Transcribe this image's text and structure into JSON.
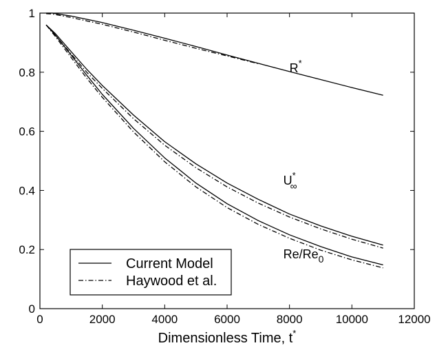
{
  "chart_data": {
    "type": "line",
    "title": "",
    "xlabel": "Dimensionless Time, t",
    "xlabel_sup": "*",
    "ylabel": "",
    "xlim": [
      0,
      12000
    ],
    "ylim": [
      0,
      1
    ],
    "xticks": [
      0,
      2000,
      4000,
      6000,
      8000,
      10000,
      12000
    ],
    "yticks": [
      0,
      0.2,
      0.4,
      0.6,
      0.8,
      1
    ],
    "xtick_labels": [
      "0",
      "2000",
      "4000",
      "6000",
      "8000",
      "10000",
      "12000"
    ],
    "ytick_labels": [
      "0",
      "0.2",
      "0.4",
      "0.6",
      "0.8",
      "1"
    ],
    "grid": false,
    "legend_position": "bottom-left",
    "legend": [
      {
        "label": "Current Model",
        "style": "solid"
      },
      {
        "label": "Haywood et al.",
        "style": "dashdot"
      }
    ],
    "annotations": [
      {
        "id": "r",
        "base": "R",
        "sup": "*",
        "sub": "",
        "x": 8000,
        "y": 0.8
      },
      {
        "id": "u",
        "base": "U",
        "sup": "*",
        "sub": "∞",
        "x": 7800,
        "y": 0.42
      },
      {
        "id": "re",
        "base": "Re/Re",
        "sup": "",
        "sub": "0",
        "x": 7800,
        "y": 0.17
      }
    ],
    "series": [
      {
        "group": "R*",
        "model": "Current Model",
        "style": "solid",
        "x": [
          200,
          400,
          1000,
          2000,
          3000,
          4000,
          5000,
          6000,
          7000,
          8000,
          9000,
          10000,
          11000
        ],
        "y": [
          1.0,
          1.0,
          0.99,
          0.968,
          0.942,
          0.915,
          0.887,
          0.858,
          0.83,
          0.802,
          0.775,
          0.748,
          0.722
        ]
      },
      {
        "group": "R*",
        "model": "Haywood et al.",
        "style": "dashdot",
        "x": [
          200,
          400,
          1000,
          2000,
          3000,
          4000,
          5000,
          6000,
          7000
        ],
        "y": [
          0.998,
          0.997,
          0.985,
          0.962,
          0.936,
          0.908,
          0.881,
          0.855,
          0.829
        ]
      },
      {
        "group": "U*",
        "model": "Current Model",
        "style": "solid",
        "x": [
          200,
          500,
          1000,
          1500,
          2000,
          3000,
          4000,
          5000,
          6000,
          7000,
          8000,
          9000,
          10000,
          11000
        ],
        "y": [
          0.96,
          0.93,
          0.87,
          0.81,
          0.755,
          0.655,
          0.565,
          0.49,
          0.425,
          0.37,
          0.32,
          0.28,
          0.245,
          0.215
        ]
      },
      {
        "group": "U*",
        "model": "Haywood et al.",
        "style": "dashdot",
        "x": [
          200,
          500,
          1000,
          1500,
          2000,
          3000,
          4000,
          5000,
          6000,
          7000,
          8000,
          9000,
          10000,
          11000
        ],
        "y": [
          0.96,
          0.925,
          0.862,
          0.8,
          0.745,
          0.643,
          0.553,
          0.477,
          0.412,
          0.357,
          0.31,
          0.27,
          0.235,
          0.205
        ]
      },
      {
        "group": "Re/Re0",
        "model": "Current Model",
        "style": "solid",
        "x": [
          200,
          500,
          1000,
          1500,
          2000,
          3000,
          4000,
          5000,
          6000,
          7000,
          8000,
          9000,
          10000,
          11000
        ],
        "y": [
          0.96,
          0.925,
          0.858,
          0.79,
          0.725,
          0.61,
          0.51,
          0.425,
          0.355,
          0.298,
          0.25,
          0.21,
          0.175,
          0.148
        ]
      },
      {
        "group": "Re/Re0",
        "model": "Haywood et al.",
        "style": "dashdot",
        "x": [
          200,
          500,
          1000,
          1500,
          2000,
          3000,
          4000,
          5000,
          6000,
          7000,
          8000,
          9000,
          10000,
          11000
        ],
        "y": [
          0.96,
          0.92,
          0.85,
          0.78,
          0.715,
          0.598,
          0.497,
          0.412,
          0.342,
          0.285,
          0.238,
          0.198,
          0.165,
          0.138
        ]
      }
    ]
  }
}
